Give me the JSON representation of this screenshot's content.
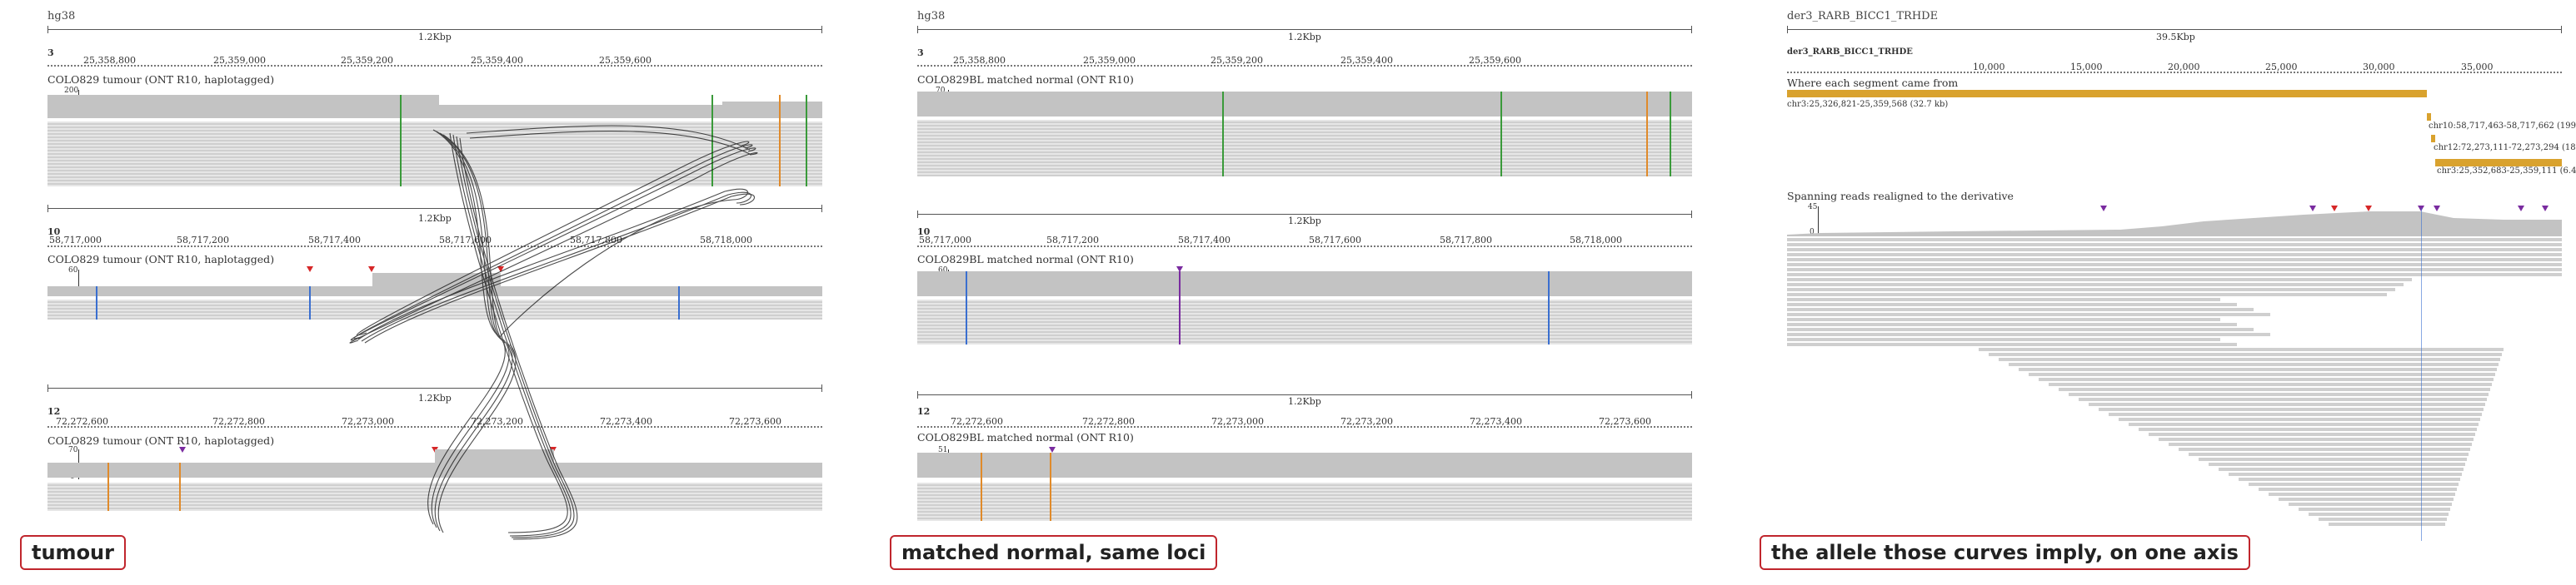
{
  "panel1": {
    "genome": "hg38",
    "annotation": "tumour",
    "tracks": [
      {
        "span": "1.2Kbp",
        "chrom": "3",
        "ticks": [
          "25,358,800",
          "25,359,000",
          "25,359,200",
          "25,359,400",
          "25,359,600"
        ],
        "label": "COLO829 tumour (ONT R10, haplotagged)",
        "covmax": "200",
        "covmin": "0"
      },
      {
        "span": "1.2Kbp",
        "chrom": "10",
        "ticks": [
          "58,717,000",
          "58,717,200",
          "58,717,400",
          "58,717,600",
          "58,717,800",
          "58,718,000"
        ],
        "label": "COLO829 tumour (ONT R10, haplotagged)",
        "covmax": "60",
        "covmin": "0"
      },
      {
        "span": "1.2Kbp",
        "chrom": "12",
        "ticks": [
          "72,272,600",
          "72,272,800",
          "72,273,000",
          "72,273,200",
          "72,273,400",
          "72,273,600"
        ],
        "label": "COLO829 tumour (ONT R10, haplotagged)",
        "covmax": "70",
        "covmin": "0"
      }
    ]
  },
  "panel2": {
    "genome": "hg38",
    "annotation": "matched normal, same loci",
    "tracks": [
      {
        "span": "1.2Kbp",
        "chrom": "3",
        "ticks": [
          "25,358,800",
          "25,359,000",
          "25,359,200",
          "25,359,400",
          "25,359,600"
        ],
        "label": "COLO829BL matched normal (ONT R10)",
        "covmax": "70",
        "covmin": "0"
      },
      {
        "span": "1.2Kbp",
        "chrom": "10",
        "ticks": [
          "58,717,000",
          "58,717,200",
          "58,717,400",
          "58,717,600",
          "58,717,800",
          "58,718,000"
        ],
        "label": "COLO829BL matched normal (ONT R10)",
        "covmax": "60",
        "covmin": "0"
      },
      {
        "span": "1.2Kbp",
        "chrom": "12",
        "ticks": [
          "72,272,600",
          "72,272,800",
          "72,273,000",
          "72,273,200",
          "72,273,400",
          "72,273,600"
        ],
        "label": "COLO829BL matched normal (ONT R10)",
        "covmax": "51",
        "covmin": "0"
      }
    ]
  },
  "panel3": {
    "genome": "der3_RARB_BICC1_TRHDE",
    "annotation": "the allele those curves imply, on one axis",
    "span": "39.5Kbp",
    "chrom": "der3_RARB_BICC1_TRHDE",
    "ticks": [
      "10,000",
      "15,000",
      "20,000",
      "25,000",
      "30,000",
      "35,000"
    ],
    "segments_title": "Where each segment came from",
    "segments": [
      {
        "label": "chr3:25,326,821-25,359,568 (32.7 kb)"
      },
      {
        "label": "chr10:58,717,463-58,717,662 (199"
      },
      {
        "label": "chr12:72,273,111-72,273,294 (18"
      },
      {
        "label": "chr3:25,352,683-25,359,111 (6.4"
      }
    ],
    "reads_title": "Spanning reads realigned to the derivative",
    "covmax": "45",
    "covmin": "0"
  },
  "colors": {
    "segment": "#d9a22e",
    "annotation_border": "#c0262d",
    "curve": "#111111",
    "mm_green": "#3a9a3a",
    "mm_orange": "#e08a2a",
    "mm_blue": "#3a6fd0"
  }
}
